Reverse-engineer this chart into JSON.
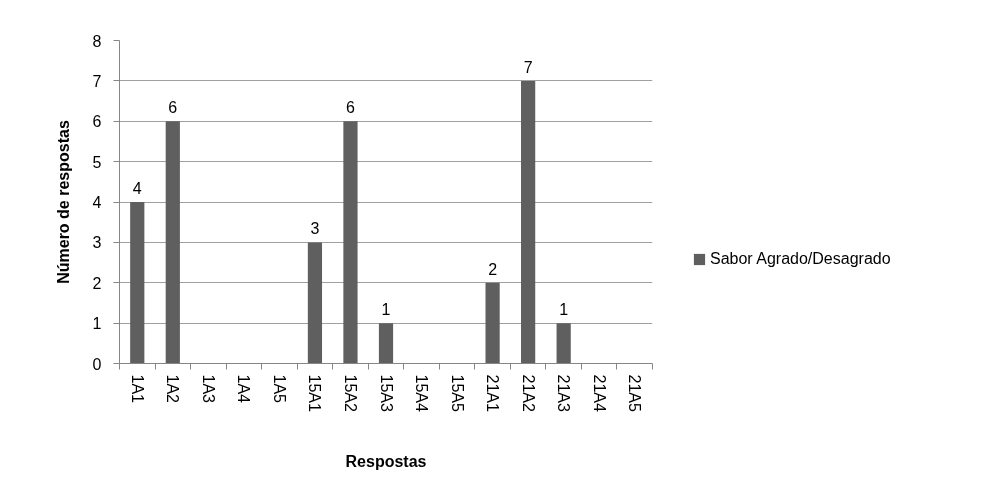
{
  "chart_data": {
    "type": "bar",
    "xlabel": "Respostas",
    "ylabel": "Número de respostas",
    "categories": [
      "1A1",
      "1A2",
      "1A3",
      "1A4",
      "1A5",
      "15A1",
      "15A2",
      "15A3",
      "15A4",
      "15A5",
      "21A1",
      "21A2",
      "21A3",
      "21A4",
      "21A5"
    ],
    "series": [
      {
        "name": "Sabor Agrado/Desagrado",
        "color": "#5f5f5f",
        "values": [
          4,
          6,
          0,
          0,
          0,
          3,
          6,
          1,
          0,
          0,
          2,
          7,
          1,
          0,
          0
        ],
        "value_labels": [
          "4",
          "6",
          null,
          null,
          null,
          "3",
          "6",
          "1",
          null,
          null,
          "2",
          "7",
          "1",
          null,
          null
        ]
      }
    ],
    "ylim": [
      0,
      8
    ],
    "yticks": [
      0,
      1,
      2,
      3,
      4,
      5,
      6,
      7,
      8
    ],
    "grid": "y",
    "legend": "right"
  }
}
